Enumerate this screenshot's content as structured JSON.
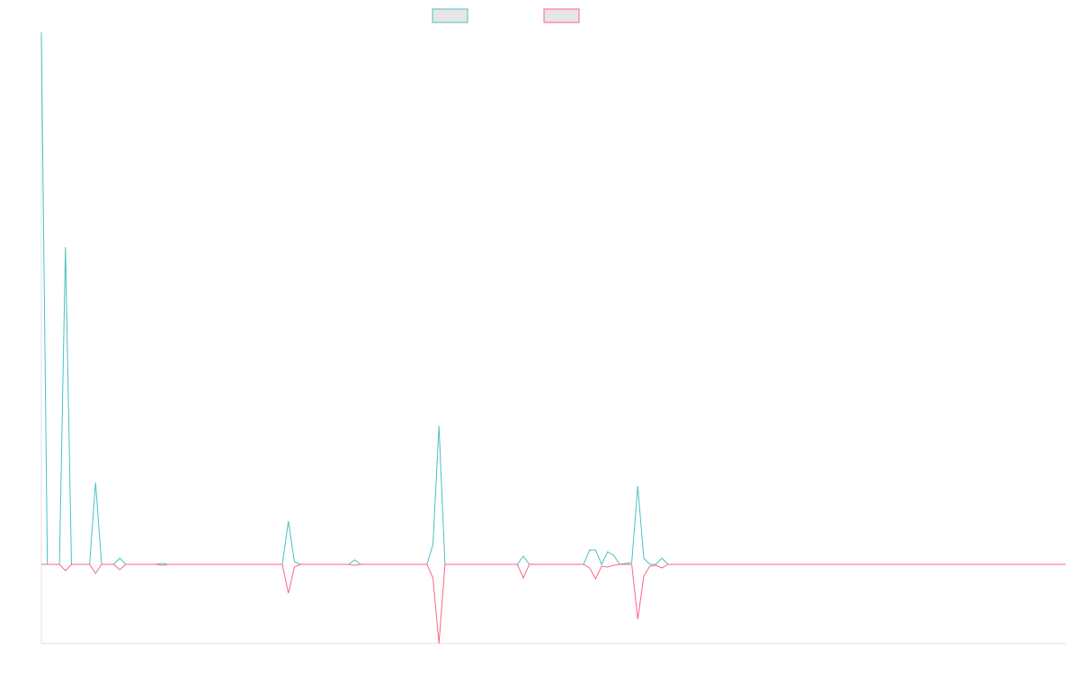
{
  "chart_data": {
    "type": "line",
    "x": [
      0,
      1,
      3,
      4,
      5,
      8,
      9,
      10,
      12,
      13,
      14,
      19,
      20,
      21,
      40,
      41,
      42,
      43,
      51,
      52,
      53,
      64,
      65,
      66,
      67,
      79,
      80,
      81,
      90,
      91,
      92,
      93,
      94,
      95,
      96,
      98,
      99,
      100,
      101,
      102,
      103,
      104,
      170
    ],
    "xlim": [
      0,
      170
    ],
    "ylim": [
      -88,
      592
    ],
    "series": [
      {
        "color": "#4bc0c0",
        "values": [
          592,
          0,
          0,
          353,
          0,
          0,
          91,
          0,
          0,
          7,
          0,
          0,
          1,
          0,
          0,
          48,
          3,
          0,
          0,
          5,
          0,
          0,
          22,
          154,
          0,
          0,
          9,
          0,
          0,
          16,
          16,
          0,
          14,
          10,
          0,
          2,
          87,
          7,
          0,
          0,
          7,
          0,
          0
        ]
      },
      {
        "color": "#ff6384",
        "values": [
          0,
          0,
          0,
          -7,
          0,
          0,
          -10,
          0,
          0,
          -6,
          0,
          0,
          -1,
          0,
          0,
          -32,
          -3,
          0,
          0,
          -1,
          0,
          0,
          -15,
          -88,
          0,
          0,
          -15,
          0,
          0,
          -4,
          -16,
          -2,
          -3,
          -1,
          0,
          0,
          -61,
          -13,
          -2,
          -1,
          -4,
          0,
          0
        ]
      }
    ]
  }
}
